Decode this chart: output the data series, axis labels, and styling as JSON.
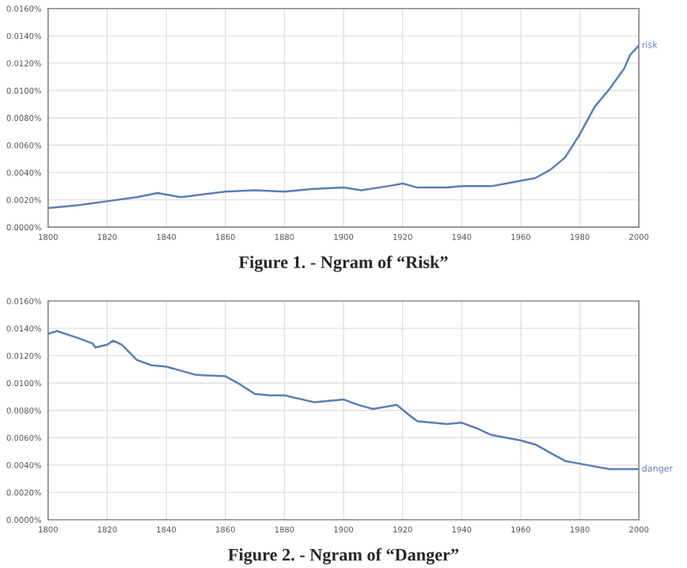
{
  "chart_data": [
    {
      "type": "line",
      "title": "Figure 1. - Ngram of “Risk”",
      "xlim": [
        1800,
        2000
      ],
      "xticks": [
        1800,
        1820,
        1840,
        1860,
        1880,
        1900,
        1920,
        1940,
        1960,
        1980,
        2000
      ],
      "ylim": [
        0,
        0.016
      ],
      "yticks": [
        {
          "value": 0,
          "label": "0.0000%"
        },
        {
          "value": 0.002,
          "label": "0.0020%"
        },
        {
          "value": 0.004,
          "label": "0.0040%"
        },
        {
          "value": 0.006,
          "label": "0.0060%"
        },
        {
          "value": 0.008,
          "label": "0.0080%"
        },
        {
          "value": 0.01,
          "label": "0.0100%"
        },
        {
          "value": 0.012,
          "label": "0.0120%"
        },
        {
          "value": 0.014,
          "label": "0.0140%"
        },
        {
          "value": 0.016,
          "label": "0.0160%"
        }
      ],
      "grid": true,
      "legend": false,
      "x": [
        1800,
        1810,
        1820,
        1830,
        1837,
        1845,
        1860,
        1870,
        1880,
        1890,
        1900,
        1906,
        1915,
        1920,
        1925,
        1935,
        1940,
        1950,
        1955,
        1960,
        1965,
        1970,
        1975,
        1980,
        1985,
        1990,
        1995,
        1997,
        2000
      ],
      "series": [
        {
          "name": "risk",
          "color": "#5a7fb5",
          "values": [
            0.0014,
            0.0016,
            0.0019,
            0.0022,
            0.0025,
            0.0022,
            0.0026,
            0.0027,
            0.0026,
            0.0028,
            0.0029,
            0.0027,
            0.003,
            0.0032,
            0.0029,
            0.0029,
            0.003,
            0.003,
            0.0032,
            0.0034,
            0.0036,
            0.0042,
            0.0051,
            0.0068,
            0.0088,
            0.0101,
            0.0116,
            0.0126,
            0.0133
          ]
        }
      ]
    },
    {
      "type": "line",
      "title": "Figure 2. - Ngram of “Danger”",
      "xlim": [
        1800,
        2000
      ],
      "xticks": [
        1800,
        1820,
        1840,
        1860,
        1880,
        1900,
        1920,
        1940,
        1960,
        1980,
        2000
      ],
      "ylim": [
        0,
        0.016
      ],
      "yticks": [
        {
          "value": 0,
          "label": "0.0000%"
        },
        {
          "value": 0.002,
          "label": "0.0020%"
        },
        {
          "value": 0.004,
          "label": "0.0040%"
        },
        {
          "value": 0.006,
          "label": "0.0060%"
        },
        {
          "value": 0.008,
          "label": "0.0080%"
        },
        {
          "value": 0.01,
          "label": "0.0100%"
        },
        {
          "value": 0.012,
          "label": "0.0120%"
        },
        {
          "value": 0.014,
          "label": "0.0140%"
        },
        {
          "value": 0.016,
          "label": "0.0160%"
        }
      ],
      "grid": true,
      "legend": false,
      "x": [
        1800,
        1803,
        1810,
        1815,
        1816,
        1820,
        1822,
        1825,
        1830,
        1835,
        1840,
        1845,
        1850,
        1860,
        1865,
        1870,
        1875,
        1880,
        1890,
        1900,
        1905,
        1910,
        1918,
        1922,
        1925,
        1935,
        1940,
        1945,
        1950,
        1960,
        1965,
        1970,
        1975,
        1980,
        1990,
        2000
      ],
      "series": [
        {
          "name": "danger",
          "color": "#5a7fb5",
          "values": [
            0.0136,
            0.0138,
            0.0133,
            0.0129,
            0.0126,
            0.0128,
            0.0131,
            0.0128,
            0.0117,
            0.0113,
            0.0112,
            0.0109,
            0.0106,
            0.0105,
            0.0099,
            0.0092,
            0.0091,
            0.0091,
            0.0086,
            0.0088,
            0.0084,
            0.0081,
            0.0084,
            0.0077,
            0.0072,
            0.007,
            0.0071,
            0.0067,
            0.0062,
            0.0058,
            0.0055,
            0.0049,
            0.0043,
            0.0041,
            0.0037,
            0.0037
          ]
        }
      ]
    }
  ]
}
